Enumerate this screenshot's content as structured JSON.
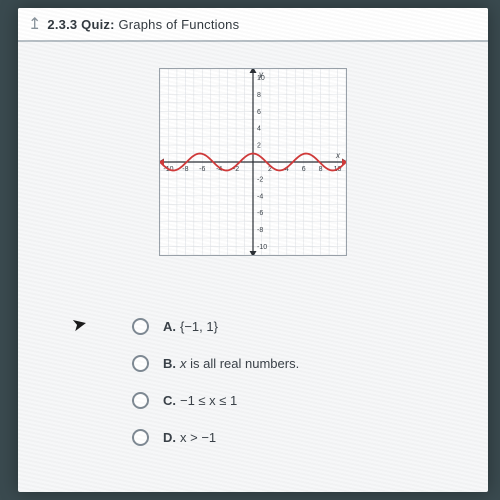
{
  "header": {
    "back_icon": "↥",
    "title_strong": "2.3.3 Quiz:",
    "title_rest": " Graphs of Functions"
  },
  "graph": {
    "type": "line",
    "axis_label_y": "y",
    "axis_label_x": "x",
    "xlim": [
      -11,
      11
    ],
    "ylim": [
      -11,
      11
    ],
    "xtick_step": 2,
    "ytick_step": 2,
    "x_tick_labels": [
      "-10",
      "-8",
      "-6",
      "-4",
      "-2",
      "2",
      "4",
      "6",
      "8",
      "10"
    ],
    "y_tick_labels": [
      "10",
      "8",
      "6",
      "4",
      "2",
      "-2",
      "-4",
      "-6",
      "-8",
      "-10"
    ],
    "grid_step": 1,
    "grid_color": "#e1e4e8",
    "axis_color": "#2a2f35",
    "tick_font_size": 7,
    "tick_color": "#3a4148",
    "background_color": "#ffffff",
    "curve_color": "#d13a3a",
    "curve_width": 1.8,
    "curve": {
      "type": "cosine",
      "amplitude": 1,
      "period": 6.2832,
      "y_offset": 0,
      "x_start": -11,
      "x_end": 11
    },
    "arrow_color": "#2a2f35"
  },
  "options": {
    "a": {
      "letter": "A.",
      "text": "{−1, 1}"
    },
    "b": {
      "letter": "B.",
      "text_html": "x is all real numbers."
    },
    "c": {
      "letter": "C.",
      "text": "−1 ≤ x ≤ 1"
    },
    "d": {
      "letter": "D.",
      "text": "x > −1"
    }
  },
  "colors": {
    "page_bg": "#f6f7f8",
    "photo_bg": "#3a4a4f",
    "header_border": "#b8c0c6",
    "text": "#3a4148",
    "radio_border": "#7f8a94"
  }
}
